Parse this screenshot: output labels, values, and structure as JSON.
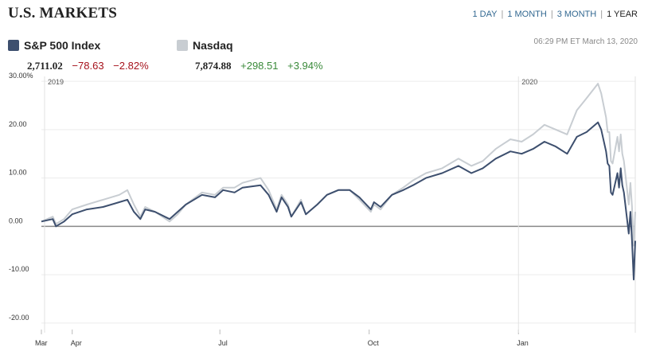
{
  "header": {
    "title": "U.S. MARKETS",
    "ranges": [
      {
        "label": "1 DAY",
        "active": false
      },
      {
        "label": "1 MONTH",
        "active": false
      },
      {
        "label": "3 MONTH",
        "active": false
      },
      {
        "label": "1 YEAR",
        "active": true
      }
    ],
    "timestamp": "06:29 PM ET March 13, 2020"
  },
  "indexes": [
    {
      "name": "S&P 500 Index",
      "price": "2,711.02",
      "change": "−78.63",
      "change_pct": "−2.82%",
      "color": "#3d4f6e",
      "direction": "neg"
    },
    {
      "name": "Nasdaq",
      "price": "7,874.88",
      "change": "+298.51",
      "change_pct": "+3.94%",
      "color": "#c8cdd2",
      "direction": "pos"
    }
  ],
  "chart_data": {
    "type": "line",
    "ylim": [
      -22,
      31
    ],
    "y_ticks": [
      {
        "value": 30,
        "label": "30.00%"
      },
      {
        "value": 20,
        "label": "20.00"
      },
      {
        "value": 10,
        "label": "10.00"
      },
      {
        "value": 0,
        "label": "0.00"
      },
      {
        "value": -10,
        "label": "-10.00"
      },
      {
        "value": -20,
        "label": "-20.00"
      }
    ],
    "x_ticks": [
      {
        "label": "Mar",
        "date": "2019-03-13"
      },
      {
        "label": "Apr",
        "date": "2019-04-01"
      },
      {
        "label": "Jul",
        "date": "2019-07-01"
      },
      {
        "label": "Oct",
        "date": "2019-10-01"
      },
      {
        "label": "Jan",
        "date": "2020-01-01"
      }
    ],
    "year_labels": [
      {
        "label": "2019",
        "date": "2019-03-13"
      },
      {
        "label": "2020",
        "date": "2020-01-01"
      }
    ],
    "xlim": [
      "2019-03-13",
      "2020-03-13"
    ],
    "series": [
      {
        "name": "S&P 500 Index",
        "color": "#3d4f6e",
        "points": [
          [
            "2019-03-13",
            1
          ],
          [
            "2019-03-20",
            1.5
          ],
          [
            "2019-03-22",
            0
          ],
          [
            "2019-03-27",
            1
          ],
          [
            "2019-04-01",
            2.5
          ],
          [
            "2019-04-10",
            3.5
          ],
          [
            "2019-04-20",
            4
          ],
          [
            "2019-04-30",
            5
          ],
          [
            "2019-05-05",
            5.5
          ],
          [
            "2019-05-09",
            3
          ],
          [
            "2019-05-13",
            1.5
          ],
          [
            "2019-05-16",
            3.5
          ],
          [
            "2019-05-22",
            3
          ],
          [
            "2019-05-31",
            1.5
          ],
          [
            "2019-06-05",
            3
          ],
          [
            "2019-06-10",
            4.5
          ],
          [
            "2019-06-20",
            6.5
          ],
          [
            "2019-06-28",
            6
          ],
          [
            "2019-07-03",
            7.5
          ],
          [
            "2019-07-10",
            7
          ],
          [
            "2019-07-15",
            8
          ],
          [
            "2019-07-26",
            8.5
          ],
          [
            "2019-07-31",
            6.5
          ],
          [
            "2019-08-05",
            3
          ],
          [
            "2019-08-08",
            6
          ],
          [
            "2019-08-12",
            4
          ],
          [
            "2019-08-14",
            2
          ],
          [
            "2019-08-20",
            5
          ],
          [
            "2019-08-23",
            2.5
          ],
          [
            "2019-08-30",
            4.5
          ],
          [
            "2019-09-05",
            6.5
          ],
          [
            "2019-09-12",
            7.5
          ],
          [
            "2019-09-19",
            7.5
          ],
          [
            "2019-09-25",
            6
          ],
          [
            "2019-10-02",
            3.5
          ],
          [
            "2019-10-04",
            5
          ],
          [
            "2019-10-08",
            4
          ],
          [
            "2019-10-15",
            6.5
          ],
          [
            "2019-10-22",
            7.5
          ],
          [
            "2019-10-28",
            8.5
          ],
          [
            "2019-11-05",
            10
          ],
          [
            "2019-11-15",
            11
          ],
          [
            "2019-11-25",
            12.5
          ],
          [
            "2019-12-03",
            11
          ],
          [
            "2019-12-10",
            12
          ],
          [
            "2019-12-18",
            14
          ],
          [
            "2019-12-27",
            15.5
          ],
          [
            "2020-01-03",
            15
          ],
          [
            "2020-01-10",
            16
          ],
          [
            "2020-01-17",
            17.5
          ],
          [
            "2020-01-24",
            16.5
          ],
          [
            "2020-01-31",
            15
          ],
          [
            "2020-02-06",
            18.5
          ],
          [
            "2020-02-12",
            19.5
          ],
          [
            "2020-02-19",
            21.5
          ],
          [
            "2020-02-21",
            20
          ],
          [
            "2020-02-24",
            15.5
          ],
          [
            "2020-02-25",
            13
          ],
          [
            "2020-02-26",
            12.5
          ],
          [
            "2020-02-27",
            7
          ],
          [
            "2020-02-28",
            6.5
          ],
          [
            "2020-03-02",
            11
          ],
          [
            "2020-03-03",
            8
          ],
          [
            "2020-03-04",
            12
          ],
          [
            "2020-03-05",
            8.5
          ],
          [
            "2020-03-06",
            7
          ],
          [
            "2020-03-09",
            -1.5
          ],
          [
            "2020-03-10",
            3
          ],
          [
            "2020-03-11",
            -3
          ],
          [
            "2020-03-12",
            -11
          ],
          [
            "2020-03-13",
            -3
          ]
        ]
      },
      {
        "name": "Nasdaq",
        "color": "#c8cdd2",
        "points": [
          [
            "2019-03-13",
            1
          ],
          [
            "2019-03-20",
            2
          ],
          [
            "2019-03-22",
            0.5
          ],
          [
            "2019-03-27",
            1.5
          ],
          [
            "2019-04-01",
            3.5
          ],
          [
            "2019-04-10",
            4.5
          ],
          [
            "2019-04-20",
            5.5
          ],
          [
            "2019-04-30",
            6.5
          ],
          [
            "2019-05-05",
            7.5
          ],
          [
            "2019-05-09",
            4.5
          ],
          [
            "2019-05-13",
            2
          ],
          [
            "2019-05-16",
            4
          ],
          [
            "2019-05-22",
            3
          ],
          [
            "2019-05-31",
            1
          ],
          [
            "2019-06-05",
            2.5
          ],
          [
            "2019-06-10",
            4.5
          ],
          [
            "2019-06-20",
            7
          ],
          [
            "2019-06-28",
            6.5
          ],
          [
            "2019-07-03",
            8
          ],
          [
            "2019-07-10",
            8
          ],
          [
            "2019-07-15",
            9
          ],
          [
            "2019-07-26",
            10
          ],
          [
            "2019-07-31",
            7.5
          ],
          [
            "2019-08-05",
            3.5
          ],
          [
            "2019-08-08",
            6.5
          ],
          [
            "2019-08-12",
            4.5
          ],
          [
            "2019-08-14",
            2
          ],
          [
            "2019-08-20",
            5.5
          ],
          [
            "2019-08-23",
            2.5
          ],
          [
            "2019-08-30",
            4.5
          ],
          [
            "2019-09-05",
            6.5
          ],
          [
            "2019-09-12",
            7.5
          ],
          [
            "2019-09-19",
            7.5
          ],
          [
            "2019-09-25",
            5.5
          ],
          [
            "2019-10-02",
            3
          ],
          [
            "2019-10-04",
            4.5
          ],
          [
            "2019-10-08",
            3.5
          ],
          [
            "2019-10-15",
            6.5
          ],
          [
            "2019-10-22",
            8
          ],
          [
            "2019-10-28",
            9.5
          ],
          [
            "2019-11-05",
            11
          ],
          [
            "2019-11-15",
            12
          ],
          [
            "2019-11-25",
            14
          ],
          [
            "2019-12-03",
            12.5
          ],
          [
            "2019-12-10",
            13.5
          ],
          [
            "2019-12-18",
            16
          ],
          [
            "2019-12-27",
            18
          ],
          [
            "2020-01-03",
            17.5
          ],
          [
            "2020-01-10",
            19
          ],
          [
            "2020-01-17",
            21
          ],
          [
            "2020-01-24",
            20
          ],
          [
            "2020-01-31",
            19
          ],
          [
            "2020-02-06",
            24
          ],
          [
            "2020-02-12",
            26.5
          ],
          [
            "2020-02-19",
            29.5
          ],
          [
            "2020-02-21",
            27.5
          ],
          [
            "2020-02-24",
            22.5
          ],
          [
            "2020-02-25",
            19.5
          ],
          [
            "2020-02-26",
            19.5
          ],
          [
            "2020-02-27",
            13.5
          ],
          [
            "2020-02-28",
            13
          ],
          [
            "2020-03-02",
            18.5
          ],
          [
            "2020-03-03",
            15.5
          ],
          [
            "2020-03-04",
            19
          ],
          [
            "2020-03-05",
            15
          ],
          [
            "2020-03-06",
            13.5
          ],
          [
            "2020-03-09",
            4.5
          ],
          [
            "2020-03-10",
            9
          ],
          [
            "2020-03-11",
            4
          ],
          [
            "2020-03-12",
            -4
          ],
          [
            "2020-03-13",
            3
          ]
        ]
      }
    ]
  }
}
